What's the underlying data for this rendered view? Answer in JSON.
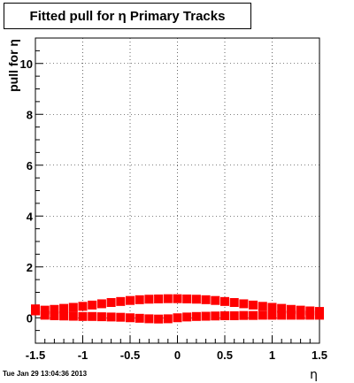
{
  "chart_data": {
    "type": "scatter",
    "title": "Fitted pull for  η  Primary Tracks",
    "xlabel": "η",
    "ylabel": "pull for η",
    "xlim": [
      -1.5,
      1.5
    ],
    "ylim": [
      -1.0,
      11.0
    ],
    "x_ticks": [
      -1.5,
      -1,
      -0.5,
      0,
      0.5,
      1,
      1.5
    ],
    "x_tick_labels": [
      "-1.5",
      "-1",
      "-0.5",
      "0",
      "0.5",
      "1",
      "1.5"
    ],
    "y_ticks": [
      0,
      2,
      4,
      6,
      8,
      10
    ],
    "y_tick_labels": [
      "0",
      "2",
      "4",
      "6",
      "8",
      "10"
    ],
    "grid": true,
    "marker_color": "#ff0000",
    "series": [
      {
        "values_x": [
          -1.5,
          -1.4,
          -1.3,
          -1.2,
          -1.1,
          -1.0,
          -0.9,
          -0.8,
          -0.7,
          -0.6,
          -0.5,
          -0.4,
          -0.3,
          -0.2,
          -0.1,
          0.0,
          0.1,
          0.2,
          0.3,
          0.4,
          0.5,
          0.6,
          0.7,
          0.8,
          0.9,
          1.0,
          1.1,
          1.2,
          1.3,
          1.4,
          1.5
        ],
        "values_y": [
          0.27,
          0.3,
          0.33,
          0.37,
          0.41,
          0.45,
          0.5,
          0.55,
          0.6,
          0.64,
          0.68,
          0.71,
          0.73,
          0.74,
          0.75,
          0.75,
          0.74,
          0.73,
          0.71,
          0.68,
          0.64,
          0.6,
          0.55,
          0.5,
          0.45,
          0.41,
          0.37,
          0.33,
          0.3,
          0.27,
          0.25
        ]
      },
      {
        "values_x": [
          -1.5,
          -1.4,
          -1.3,
          -1.2,
          -1.1,
          -1.0,
          -0.9,
          -0.8,
          -0.7,
          -0.6,
          -0.5,
          -0.4,
          -0.3,
          -0.2,
          -0.1,
          0.0,
          0.1,
          0.2,
          0.3,
          0.4,
          0.5,
          0.6,
          0.7,
          0.8,
          0.9,
          1.0,
          1.1,
          1.2,
          1.3,
          1.4,
          1.5
        ],
        "values_y": [
          0.35,
          0.1,
          0.08,
          0.07,
          0.06,
          0.05,
          0.05,
          0.04,
          0.03,
          0.02,
          0.0,
          -0.02,
          -0.04,
          -0.05,
          -0.04,
          0.0,
          0.03,
          0.05,
          0.06,
          0.07,
          0.08,
          0.08,
          0.09,
          0.09,
          0.1,
          0.1,
          0.1,
          0.1,
          0.1,
          0.1,
          0.1
        ]
      }
    ]
  },
  "footer": {
    "timestamp": "Tue Jan 29 13:04:36 2013"
  }
}
